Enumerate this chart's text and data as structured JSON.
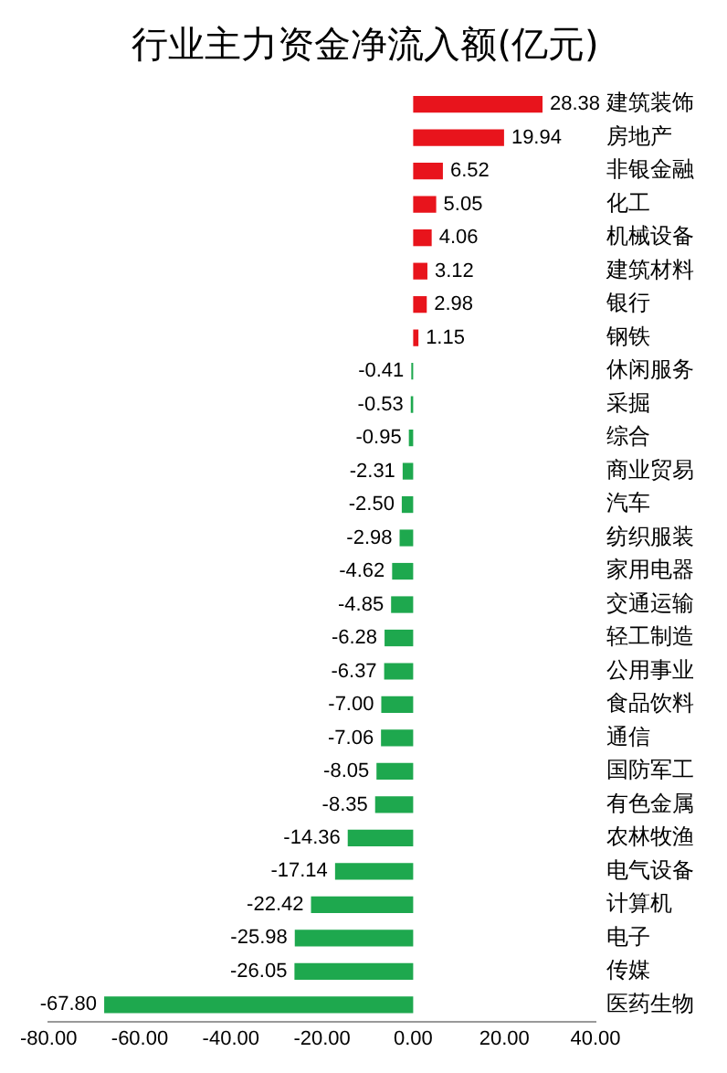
{
  "chart_data": {
    "type": "bar",
    "orientation": "horizontal",
    "title": "行业主力资金净流入额(亿元)",
    "categories": [
      "建筑装饰",
      "房地产",
      "非银金融",
      "化工",
      "机械设备",
      "建筑材料",
      "银行",
      "钢铁",
      "休闲服务",
      "采掘",
      "综合",
      "商业贸易",
      "汽车",
      "纺织服装",
      "家用电器",
      "交通运输",
      "轻工制造",
      "公用事业",
      "食品饮料",
      "通信",
      "国防军工",
      "有色金属",
      "农林牧渔",
      "电气设备",
      "计算机",
      "电子",
      "传媒",
      "医药生物"
    ],
    "values": [
      28.38,
      19.94,
      6.52,
      5.05,
      4.06,
      3.12,
      2.98,
      1.15,
      -0.41,
      -0.53,
      -0.95,
      -2.31,
      -2.5,
      -2.98,
      -4.62,
      -4.85,
      -6.28,
      -6.37,
      -7.0,
      -7.06,
      -8.05,
      -8.35,
      -14.36,
      -17.14,
      -22.42,
      -25.98,
      -26.05,
      -67.8
    ],
    "value_labels": [
      "28.38",
      "19.94",
      "6.52",
      "5.05",
      "4.06",
      "3.12",
      "2.98",
      "1.15",
      "-0.41",
      "-0.53",
      "-0.95",
      "-2.31",
      "-2.50",
      "-2.98",
      "-4.62",
      "-4.85",
      "-6.28",
      "-6.37",
      "-7.00",
      "-7.06",
      "-8.05",
      "-8.35",
      "-14.36",
      "-17.14",
      "-22.42",
      "-25.98",
      "-26.05",
      "-67.80"
    ],
    "colors": [
      "#e8141c",
      "#e8141c",
      "#e8141c",
      "#e8141c",
      "#e8141c",
      "#e8141c",
      "#e8141c",
      "#e8141c",
      "#1ea84e",
      "#1ea84e",
      "#1ea84e",
      "#1ea84e",
      "#1ea84e",
      "#1ea84e",
      "#1ea84e",
      "#1ea84e",
      "#1ea84e",
      "#1ea84e",
      "#1ea84e",
      "#1ea84e",
      "#1ea84e",
      "#1ea84e",
      "#1ea84e",
      "#1ea84e",
      "#1ea84e",
      "#1ea84e",
      "#1ea84e",
      "#1ea84e"
    ],
    "xlim": [
      -80,
      40
    ],
    "xticks": [
      {
        "value": -80,
        "label": "-80.00"
      },
      {
        "value": -60,
        "label": "-60.00"
      },
      {
        "value": -40,
        "label": "-40.00"
      },
      {
        "value": -20,
        "label": "-20.00"
      },
      {
        "value": 0,
        "label": "0.00"
      },
      {
        "value": 20,
        "label": "20.00"
      },
      {
        "value": 40,
        "label": "40.00"
      }
    ],
    "grid": false,
    "legend": false
  }
}
